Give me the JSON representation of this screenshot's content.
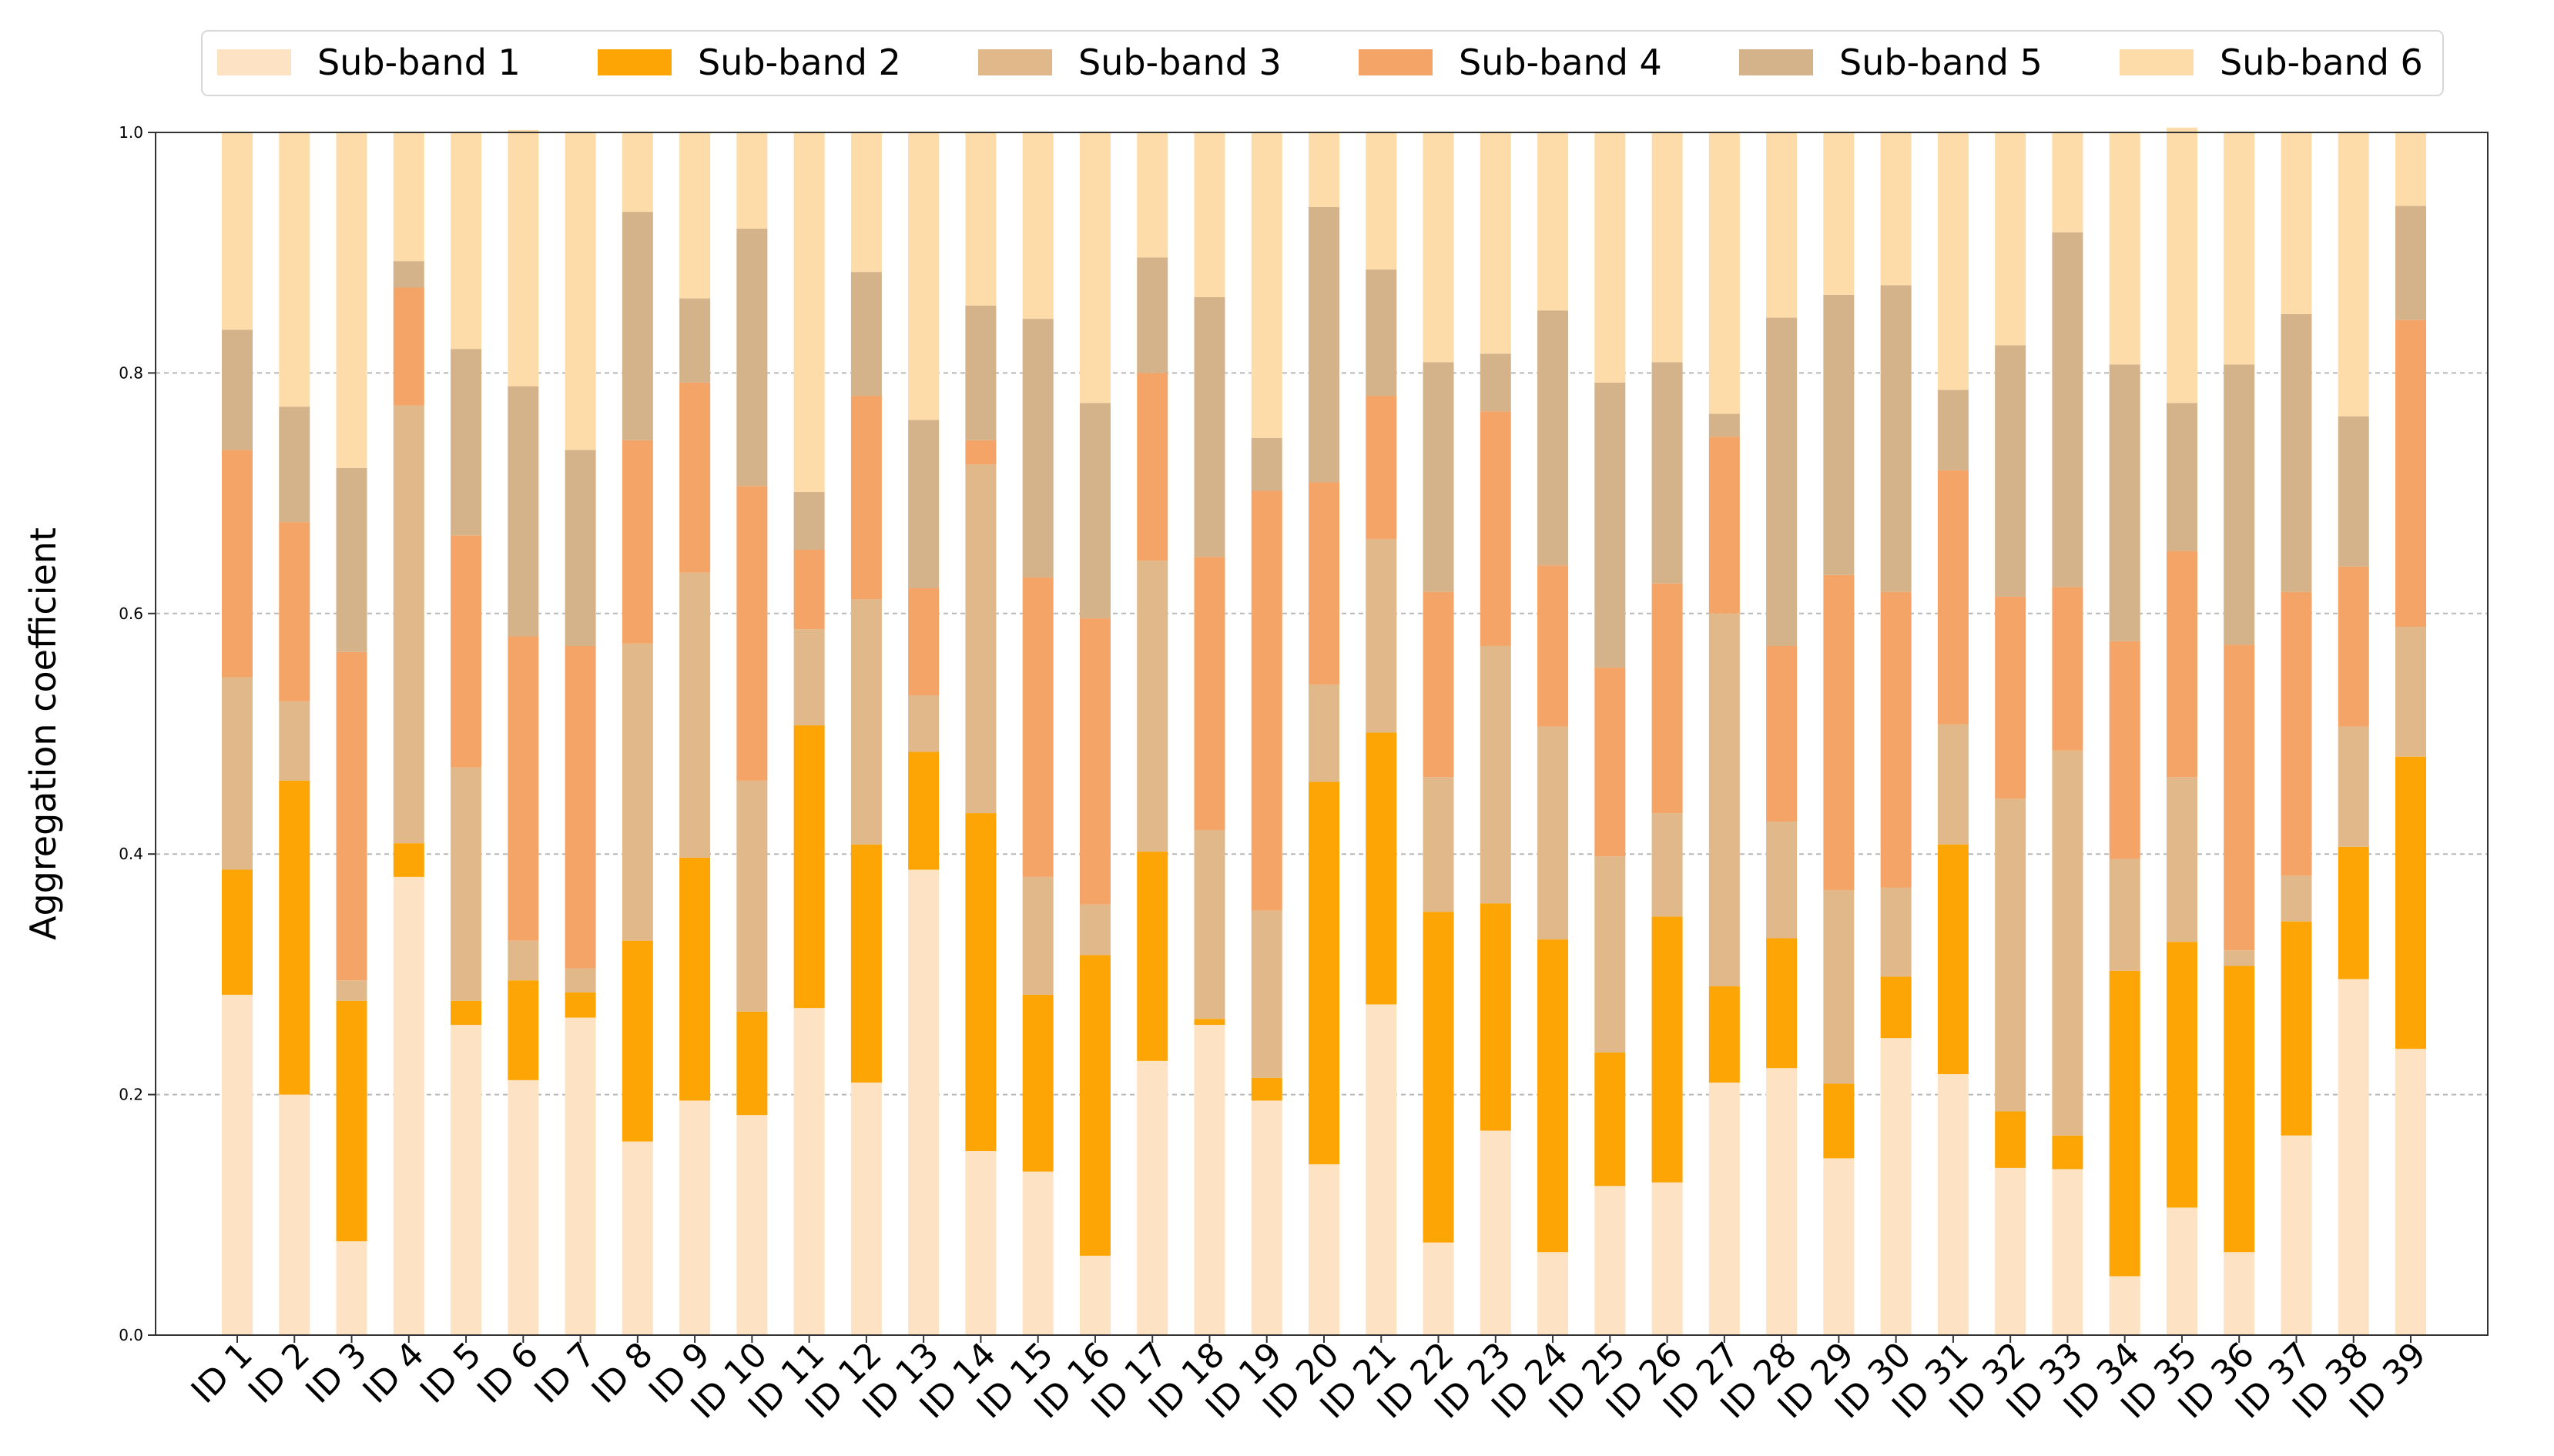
{
  "chart_data": {
    "type": "bar",
    "stacked": true,
    "title": "",
    "xlabel": "",
    "ylabel": "Aggregation coefficient",
    "ylim": [
      0.0,
      1.0
    ],
    "yticks": [
      "0.0",
      "0.2",
      "0.4",
      "0.6",
      "0.8",
      "1.0"
    ],
    "grid": "horizontal-dashed",
    "legend_position": "top-center",
    "categories": [
      "ID 1",
      "ID 2",
      "ID 3",
      "ID 4",
      "ID 5",
      "ID 6",
      "ID 7",
      "ID 8",
      "ID 9",
      "ID 10",
      "ID 11",
      "ID 12",
      "ID 13",
      "ID 14",
      "ID 15",
      "ID 16",
      "ID 17",
      "ID 18",
      "ID 19",
      "ID 20",
      "ID 21",
      "ID 22",
      "ID 23",
      "ID 24",
      "ID 25",
      "ID 26",
      "ID 27",
      "ID 28",
      "ID 29",
      "ID 30",
      "ID 31",
      "ID 32",
      "ID 33",
      "ID 34",
      "ID 35",
      "ID 36",
      "ID 37",
      "ID 38",
      "ID 39"
    ],
    "series": [
      {
        "name": "Sub-band 1",
        "color": "#fde3c4",
        "values": [
          0.283,
          0.2,
          0.078,
          0.381,
          0.258,
          0.212,
          0.264,
          0.161,
          0.195,
          0.183,
          0.272,
          0.21,
          0.387,
          0.153,
          0.136,
          0.066,
          0.228,
          0.258,
          0.195,
          0.142,
          0.275,
          0.077,
          0.17,
          0.069,
          0.124,
          0.127,
          0.21,
          0.222,
          0.147,
          0.247,
          0.217,
          0.139,
          0.138,
          0.049,
          0.106,
          0.069,
          0.166,
          0.296,
          0.238
        ]
      },
      {
        "name": "Sub-band 2",
        "color": "#fda504",
        "values": [
          0.104,
          0.261,
          0.2,
          0.028,
          0.02,
          0.083,
          0.021,
          0.167,
          0.202,
          0.086,
          0.235,
          0.198,
          0.098,
          0.281,
          0.147,
          0.25,
          0.174,
          0.005,
          0.019,
          0.318,
          0.226,
          0.275,
          0.189,
          0.26,
          0.111,
          0.221,
          0.08,
          0.108,
          0.062,
          0.051,
          0.191,
          0.047,
          0.028,
          0.254,
          0.221,
          0.238,
          0.178,
          0.11,
          0.243
        ]
      },
      {
        "name": "Sub-band 3",
        "color": "#e1b889",
        "values": [
          0.16,
          0.066,
          0.017,
          0.364,
          0.194,
          0.033,
          0.02,
          0.247,
          0.237,
          0.192,
          0.08,
          0.204,
          0.047,
          0.29,
          0.098,
          0.042,
          0.242,
          0.157,
          0.139,
          0.081,
          0.161,
          0.112,
          0.214,
          0.177,
          0.163,
          0.086,
          0.31,
          0.097,
          0.161,
          0.074,
          0.1,
          0.26,
          0.32,
          0.093,
          0.137,
          0.013,
          0.038,
          0.1,
          0.108
        ]
      },
      {
        "name": "Sub-band 4",
        "color": "#f3a466",
        "values": [
          0.189,
          0.149,
          0.273,
          0.098,
          0.193,
          0.253,
          0.268,
          0.169,
          0.158,
          0.245,
          0.066,
          0.169,
          0.089,
          0.02,
          0.249,
          0.238,
          0.156,
          0.227,
          0.349,
          0.168,
          0.119,
          0.154,
          0.195,
          0.134,
          0.157,
          0.191,
          0.147,
          0.146,
          0.262,
          0.246,
          0.211,
          0.168,
          0.136,
          0.181,
          0.188,
          0.254,
          0.236,
          0.133,
          0.255
        ]
      },
      {
        "name": "Sub-band 5",
        "color": "#d4b28a",
        "values": [
          0.1,
          0.096,
          0.153,
          0.022,
          0.155,
          0.208,
          0.163,
          0.19,
          0.07,
          0.214,
          0.048,
          0.103,
          0.14,
          0.112,
          0.215,
          0.179,
          0.096,
          0.216,
          0.044,
          0.229,
          0.105,
          0.191,
          0.048,
          0.212,
          0.237,
          0.184,
          0.019,
          0.273,
          0.233,
          0.255,
          0.067,
          0.209,
          0.295,
          0.23,
          0.123,
          0.233,
          0.231,
          0.125,
          0.095
        ]
      },
      {
        "name": "Sub-band 6",
        "color": "#fddca9",
        "values": [
          0.164,
          0.228,
          0.279,
          0.107,
          0.18,
          0.213,
          0.264,
          0.066,
          0.138,
          0.08,
          0.299,
          0.116,
          0.239,
          0.144,
          0.155,
          0.225,
          0.104,
          0.137,
          0.254,
          0.062,
          0.114,
          0.191,
          0.184,
          0.148,
          0.208,
          0.191,
          0.234,
          0.154,
          0.135,
          0.127,
          0.214,
          0.177,
          0.083,
          0.193,
          0.229,
          0.193,
          0.151,
          0.236,
          0.061
        ]
      }
    ]
  }
}
